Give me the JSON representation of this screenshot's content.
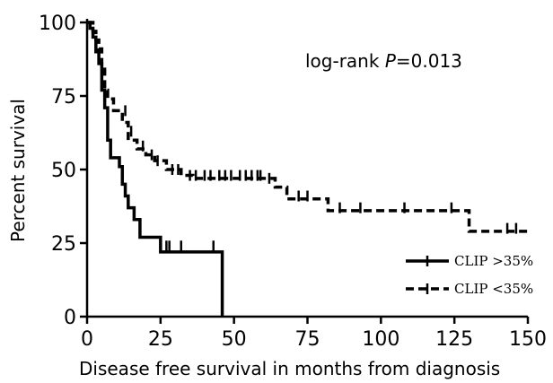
{
  "chart_data": {
    "type": "line",
    "chart_style": "step (Kaplan-Meier survival curves)",
    "title": "",
    "annotation": {
      "prefix": "log-rank ",
      "p_symbol": "P",
      "value": "=0.013"
    },
    "xlabel": "Disease free survival in months from diagnosis",
    "ylabel": "Percent survival",
    "xlim": [
      0,
      150
    ],
    "ylim": [
      0,
      100
    ],
    "x_ticks": [
      0,
      25,
      50,
      75,
      100,
      125,
      150
    ],
    "y_ticks": [
      0,
      25,
      50,
      75,
      100
    ],
    "grid": false,
    "legend_position": "bottom-right",
    "series": [
      {
        "name": "CLIP >35%",
        "line_style": "solid",
        "color": "#000000",
        "points": [
          [
            0,
            100
          ],
          [
            1,
            98
          ],
          [
            2,
            95
          ],
          [
            3,
            90
          ],
          [
            4,
            86
          ],
          [
            5,
            77
          ],
          [
            6,
            71
          ],
          [
            7,
            60
          ],
          [
            8,
            54
          ],
          [
            11,
            51
          ],
          [
            12,
            45
          ],
          [
            13,
            41
          ],
          [
            14,
            37
          ],
          [
            16,
            33
          ],
          [
            18,
            27
          ],
          [
            25,
            22
          ],
          [
            46,
            22
          ],
          [
            46,
            0
          ]
        ],
        "censored": [
          [
            27,
            24
          ],
          [
            28,
            24
          ],
          [
            32,
            24
          ],
          [
            43,
            24
          ]
        ]
      },
      {
        "name": "CLIP <35%",
        "line_style": "dashed",
        "color": "#000000",
        "points": [
          [
            0,
            100
          ],
          [
            2,
            97
          ],
          [
            3,
            94
          ],
          [
            4,
            91
          ],
          [
            5,
            85
          ],
          [
            6,
            77
          ],
          [
            7,
            74
          ],
          [
            9,
            70
          ],
          [
            12,
            66
          ],
          [
            14,
            60
          ],
          [
            17,
            57
          ],
          [
            20,
            55
          ],
          [
            23,
            53
          ],
          [
            27,
            50
          ],
          [
            32,
            48
          ],
          [
            36,
            47
          ],
          [
            62,
            47
          ],
          [
            64,
            44
          ],
          [
            68,
            40
          ],
          [
            82,
            36
          ],
          [
            129,
            36
          ],
          [
            130,
            29
          ],
          [
            150,
            29
          ]
        ],
        "censored": [
          [
            13,
            70
          ],
          [
            15,
            63
          ],
          [
            19,
            58
          ],
          [
            22,
            55
          ],
          [
            24,
            53
          ],
          [
            29,
            50
          ],
          [
            31,
            50
          ],
          [
            35,
            48
          ],
          [
            37,
            48
          ],
          [
            40,
            48
          ],
          [
            42,
            48
          ],
          [
            45,
            48
          ],
          [
            47,
            48
          ],
          [
            49,
            48
          ],
          [
            52,
            48
          ],
          [
            54,
            48
          ],
          [
            56,
            48
          ],
          [
            58,
            48
          ],
          [
            59,
            48
          ],
          [
            62,
            47
          ],
          [
            72,
            41
          ],
          [
            75,
            41
          ],
          [
            86,
            37
          ],
          [
            93,
            37
          ],
          [
            108,
            37
          ],
          [
            124,
            37
          ],
          [
            143,
            30
          ],
          [
            146,
            30
          ]
        ]
      }
    ]
  }
}
